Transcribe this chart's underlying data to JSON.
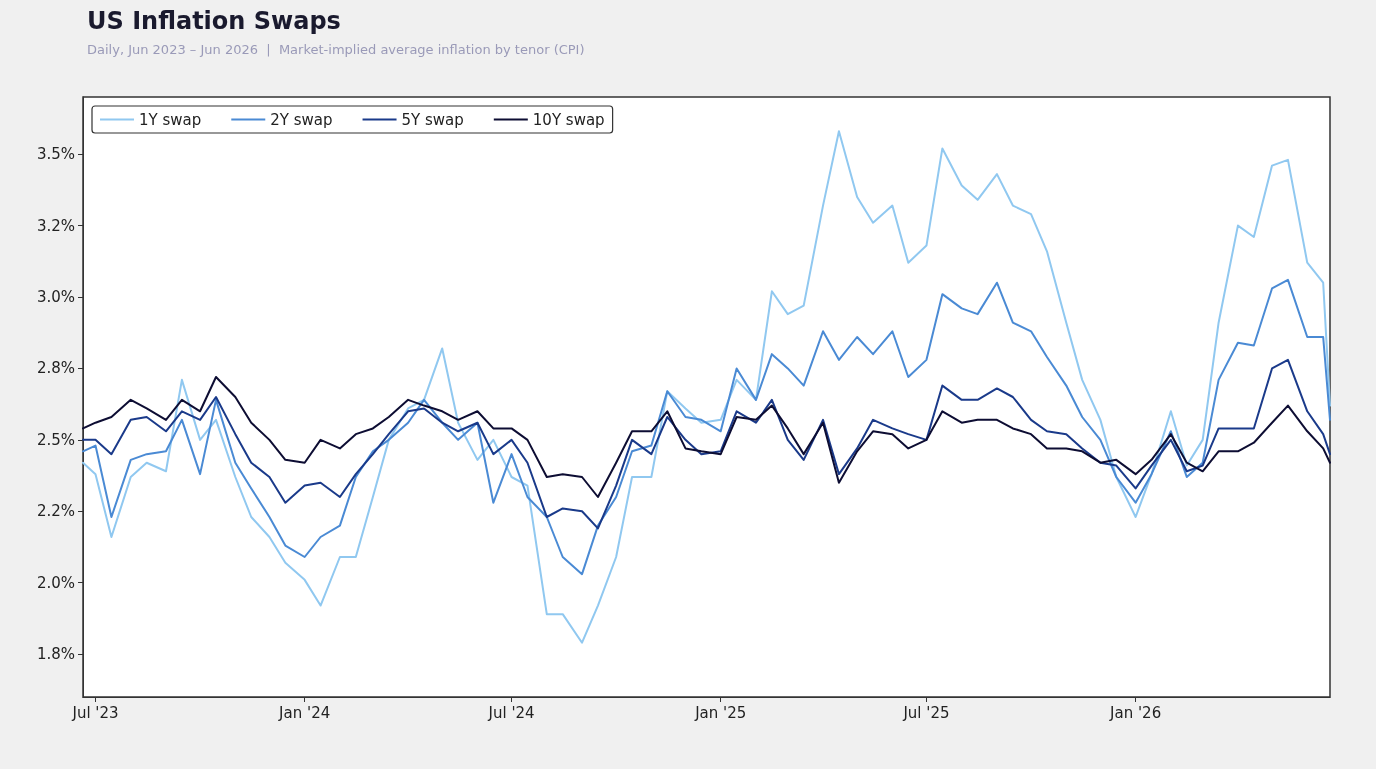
{
  "chart_data": {
    "type": "line",
    "title": "US Inflation Swaps",
    "subtitle": "Daily, Jun 2023 – Jun 2026  |  Market-implied average inflation by tenor (CPI)",
    "x": [
      "2023-06-20",
      "2023-07-01",
      "2023-07-15",
      "2023-08-01",
      "2023-08-15",
      "2023-09-01",
      "2023-09-15",
      "2023-10-01",
      "2023-10-15",
      "2023-11-01",
      "2023-11-15",
      "2023-12-01",
      "2023-12-15",
      "2024-01-01",
      "2024-01-15",
      "2024-02-01",
      "2024-02-15",
      "2024-03-01",
      "2024-03-15",
      "2024-04-01",
      "2024-04-15",
      "2024-05-01",
      "2024-05-15",
      "2024-06-01",
      "2024-06-15",
      "2024-07-01",
      "2024-07-15",
      "2024-08-01",
      "2024-08-15",
      "2024-09-01",
      "2024-09-15",
      "2024-10-01",
      "2024-10-15",
      "2024-11-01",
      "2024-11-15",
      "2024-12-01",
      "2024-12-15",
      "2025-01-01",
      "2025-01-15",
      "2025-02-01",
      "2025-02-15",
      "2025-03-01",
      "2025-03-15",
      "2025-04-01",
      "2025-04-15",
      "2025-05-01",
      "2025-05-15",
      "2025-06-01",
      "2025-06-15",
      "2025-07-01",
      "2025-07-15",
      "2025-08-01",
      "2025-08-15",
      "2025-09-01",
      "2025-09-15",
      "2025-10-01",
      "2025-10-15",
      "2025-11-01",
      "2025-11-15",
      "2025-12-01",
      "2025-12-15",
      "2026-01-01",
      "2026-01-15",
      "2026-02-01",
      "2026-02-15",
      "2026-03-01",
      "2026-03-15",
      "2026-04-01",
      "2026-04-15",
      "2026-05-01",
      "2026-05-15",
      "2026-06-01",
      "2026-06-15",
      "2026-06-21"
    ],
    "series": [
      {
        "name": "1Y swap",
        "color": "#90c8f0",
        "values": [
          2.42,
          2.38,
          2.16,
          2.37,
          2.42,
          2.39,
          2.71,
          2.5,
          2.57,
          2.37,
          2.23,
          2.16,
          2.07,
          2.01,
          1.92,
          2.09,
          2.09,
          2.3,
          2.5,
          2.61,
          2.64,
          2.82,
          2.56,
          2.43,
          2.5,
          2.37,
          2.34,
          1.89,
          1.89,
          1.79,
          1.92,
          2.09,
          2.37,
          2.37,
          2.67,
          2.61,
          2.56,
          2.57,
          2.71,
          2.64,
          3.02,
          2.94,
          2.97,
          3.32,
          3.58,
          3.35,
          3.26,
          3.32,
          3.12,
          3.18,
          3.52,
          3.39,
          3.34,
          3.43,
          3.32,
          3.29,
          3.16,
          2.91,
          2.71,
          2.57,
          2.37,
          2.23,
          2.38,
          2.6,
          2.41,
          2.5,
          2.91,
          3.25,
          3.21,
          3.46,
          3.48,
          3.12,
          3.05,
          2.62
        ]
      },
      {
        "name": "2Y swap",
        "color": "#4a8ad4",
        "values": [
          2.46,
          2.48,
          2.23,
          2.43,
          2.45,
          2.46,
          2.57,
          2.38,
          2.64,
          2.42,
          2.33,
          2.23,
          2.13,
          2.09,
          2.16,
          2.2,
          2.37,
          2.46,
          2.5,
          2.56,
          2.64,
          2.56,
          2.5,
          2.56,
          2.28,
          2.45,
          2.3,
          2.23,
          2.09,
          2.03,
          2.2,
          2.3,
          2.46,
          2.48,
          2.67,
          2.58,
          2.57,
          2.53,
          2.75,
          2.64,
          2.8,
          2.75,
          2.69,
          2.88,
          2.78,
          2.86,
          2.8,
          2.88,
          2.72,
          2.78,
          3.01,
          2.96,
          2.94,
          3.05,
          2.91,
          2.88,
          2.79,
          2.69,
          2.58,
          2.5,
          2.37,
          2.28,
          2.38,
          2.53,
          2.37,
          2.42,
          2.71,
          2.84,
          2.83,
          3.03,
          3.06,
          2.86,
          2.86,
          2.57
        ]
      },
      {
        "name": "5Y swap",
        "color": "#1a3a8a",
        "values": [
          2.5,
          2.5,
          2.45,
          2.57,
          2.58,
          2.53,
          2.6,
          2.57,
          2.65,
          2.52,
          2.42,
          2.37,
          2.28,
          2.34,
          2.35,
          2.3,
          2.38,
          2.45,
          2.52,
          2.6,
          2.61,
          2.56,
          2.53,
          2.56,
          2.45,
          2.5,
          2.42,
          2.23,
          2.26,
          2.25,
          2.19,
          2.34,
          2.5,
          2.45,
          2.58,
          2.5,
          2.45,
          2.46,
          2.6,
          2.56,
          2.64,
          2.5,
          2.43,
          2.57,
          2.38,
          2.47,
          2.57,
          2.54,
          2.52,
          2.5,
          2.69,
          2.64,
          2.64,
          2.68,
          2.65,
          2.57,
          2.53,
          2.52,
          2.47,
          2.42,
          2.41,
          2.33,
          2.41,
          2.5,
          2.39,
          2.41,
          2.54,
          2.54,
          2.54,
          2.75,
          2.78,
          2.6,
          2.52,
          2.45
        ]
      },
      {
        "name": "10Y swap",
        "color": "#0d0d33",
        "values": [
          2.54,
          2.56,
          2.58,
          2.64,
          2.61,
          2.57,
          2.64,
          2.6,
          2.72,
          2.65,
          2.56,
          2.5,
          2.43,
          2.42,
          2.5,
          2.47,
          2.52,
          2.54,
          2.58,
          2.64,
          2.62,
          2.6,
          2.57,
          2.6,
          2.54,
          2.54,
          2.5,
          2.37,
          2.38,
          2.37,
          2.3,
          2.42,
          2.53,
          2.53,
          2.6,
          2.47,
          2.46,
          2.45,
          2.58,
          2.57,
          2.62,
          2.54,
          2.45,
          2.56,
          2.35,
          2.46,
          2.53,
          2.52,
          2.47,
          2.5,
          2.6,
          2.56,
          2.57,
          2.57,
          2.54,
          2.52,
          2.47,
          2.47,
          2.46,
          2.42,
          2.43,
          2.38,
          2.43,
          2.52,
          2.42,
          2.39,
          2.46,
          2.46,
          2.49,
          2.56,
          2.62,
          2.53,
          2.47,
          2.42
        ]
      }
    ],
    "xlim": [
      "2023-06-20",
      "2026-06-21"
    ],
    "xticks": [
      {
        "value": "2023-07-01",
        "label": "Jul '23"
      },
      {
        "value": "2024-01-01",
        "label": "Jan '24"
      },
      {
        "value": "2024-07-01",
        "label": "Jul '24"
      },
      {
        "value": "2025-01-01",
        "label": "Jan '25"
      },
      {
        "value": "2025-07-01",
        "label": "Jul '25"
      },
      {
        "value": "2026-01-01",
        "label": "Jan '26"
      }
    ],
    "ylim": [
      1.6,
      3.7
    ],
    "yticks": [
      {
        "value": 1.75,
        "label": "1.8%"
      },
      {
        "value": 2.0,
        "label": "2.0%"
      },
      {
        "value": 2.25,
        "label": "2.2%"
      },
      {
        "value": 2.5,
        "label": "2.5%"
      },
      {
        "value": 2.75,
        "label": "2.8%"
      },
      {
        "value": 3.0,
        "label": "3.0%"
      },
      {
        "value": 3.25,
        "label": "3.2%"
      },
      {
        "value": 3.5,
        "label": "3.5%"
      }
    ],
    "grid": false,
    "legend": "top left",
    "line_style": "solid"
  }
}
